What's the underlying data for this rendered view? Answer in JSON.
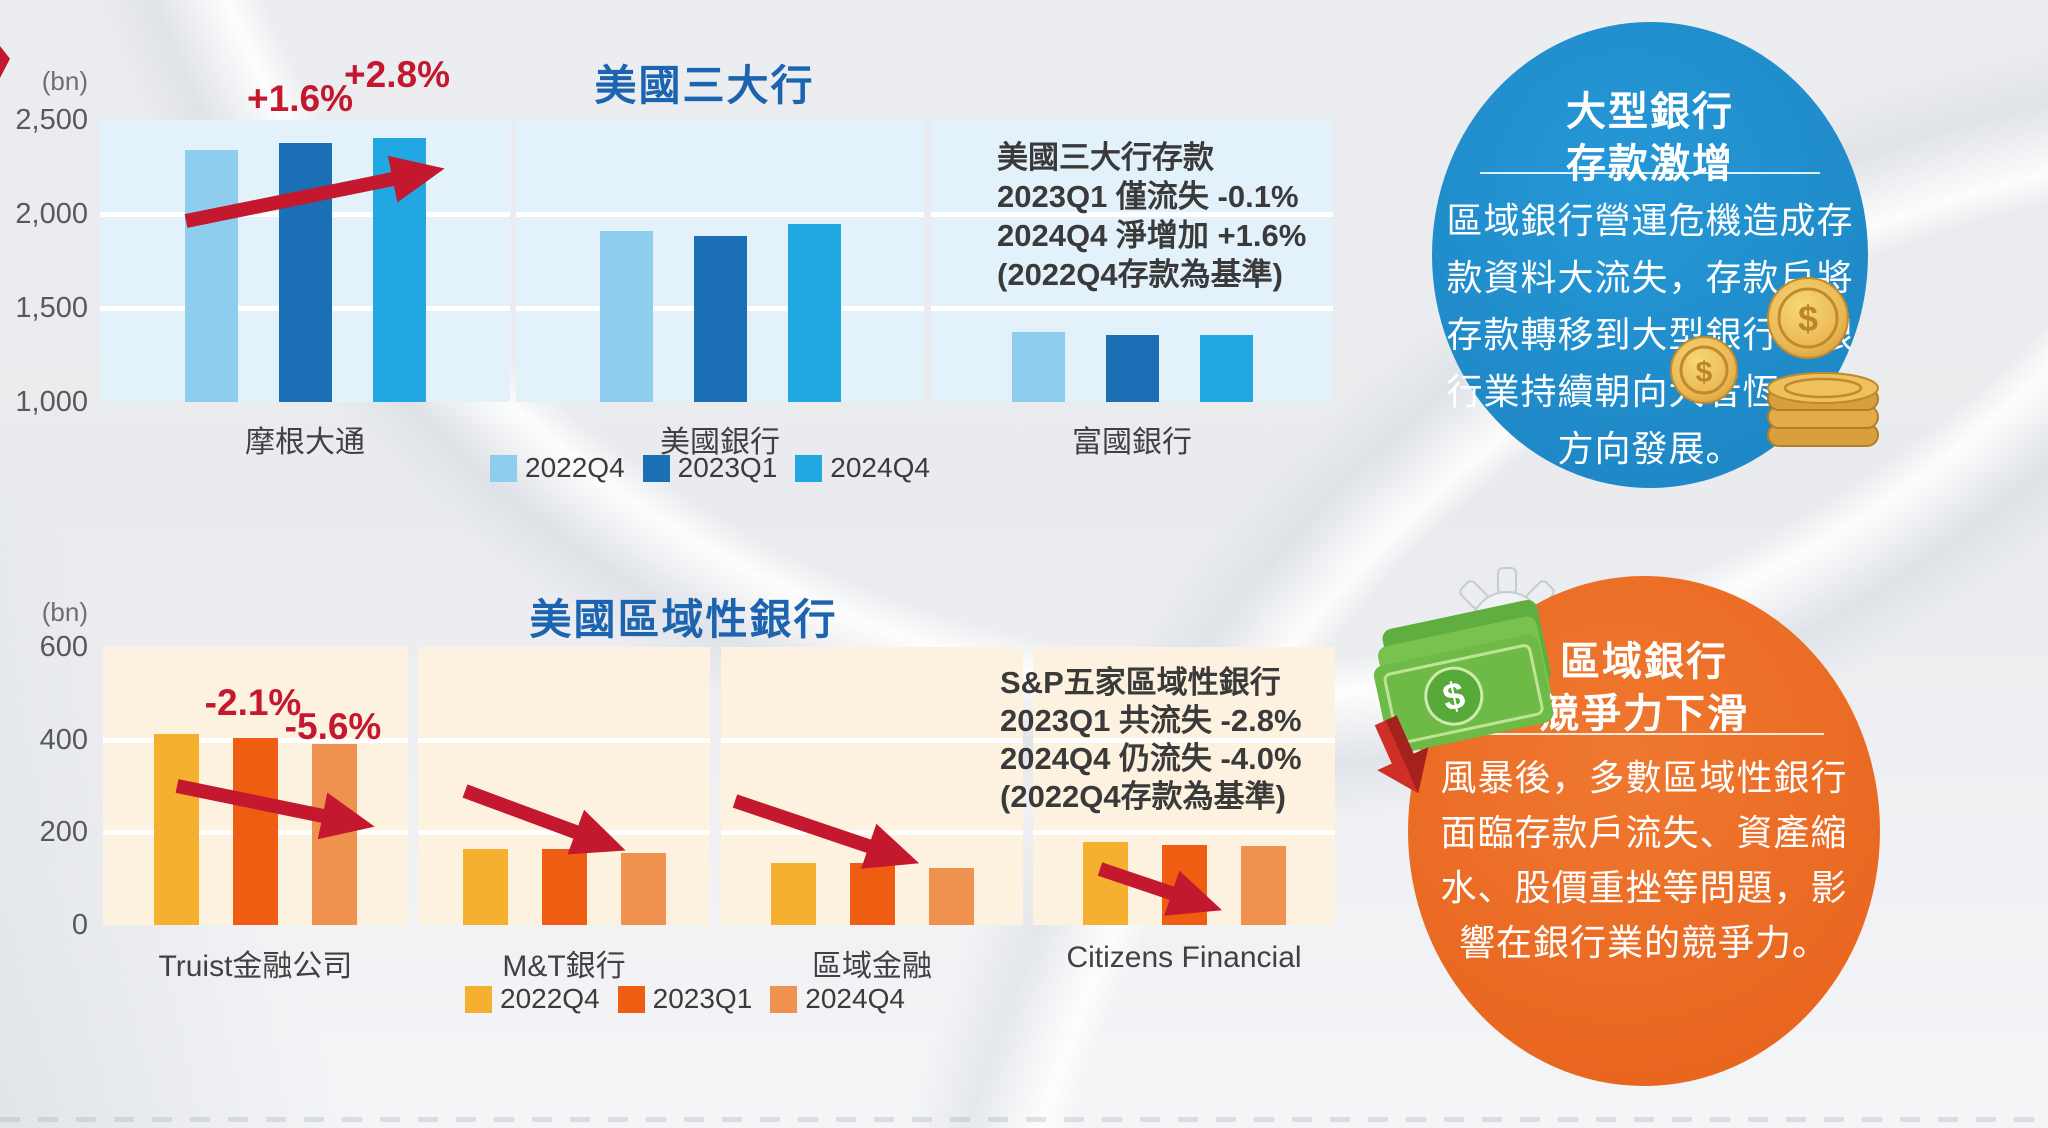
{
  "chart_data": [
    {
      "type": "bar",
      "title": "美國三大行",
      "unit": "(bn)",
      "ylim": [
        1000,
        2500
      ],
      "y_tick_values": [
        2500,
        2000,
        1500,
        1000
      ],
      "y_ticks": [
        "2,500",
        "2,000",
        "1,500",
        "1,000"
      ],
      "categories": [
        "摩根大通",
        "美國銀行",
        "富國銀行"
      ],
      "series": [
        {
          "name": "2022Q4",
          "color": "#8FCDEE",
          "values": [
            2340,
            1910,
            1370
          ]
        },
        {
          "name": "2023Q1",
          "color": "#1A6FB5",
          "values": [
            2377,
            1885,
            1355
          ]
        },
        {
          "name": "2024Q4",
          "color": "#21A7E2",
          "values": [
            2406,
            1945,
            1355
          ]
        }
      ],
      "annotations": [
        {
          "text": "+1.6%"
        },
        {
          "text": "+2.8%"
        }
      ],
      "note_lines": [
        "美國三大行存款",
        "2023Q1 僅流失 -0.1%",
        "2024Q4 淨增加 +1.6%",
        "(2022Q4存款為基準)"
      ],
      "plot_bg": "#E3F1FB",
      "grid": true,
      "legend_position": "bottom"
    },
    {
      "type": "bar",
      "title": "美國區域性銀行",
      "unit": "(bn)",
      "ylim": [
        0,
        600
      ],
      "y_tick_values": [
        600,
        400,
        200,
        0
      ],
      "y_ticks": [
        "600",
        "400",
        "200",
        "0"
      ],
      "categories": [
        "Truist金融公司",
        "M&T銀行",
        "區域金融",
        "Citizens Financial"
      ],
      "series": [
        {
          "name": "2022Q4",
          "color": "#F5B02F",
          "values": [
            413,
            163,
            133,
            180
          ]
        },
        {
          "name": "2023Q1",
          "color": "#EE5D11",
          "values": [
            404,
            163,
            133,
            172
          ]
        },
        {
          "name": "2024Q4",
          "color": "#F0924F",
          "values": [
            390,
            156,
            122,
            171
          ]
        }
      ],
      "annotations": [
        {
          "text": "-2.1%"
        },
        {
          "text": "-5.6%"
        }
      ],
      "note_lines": [
        "S&P五家區域性銀行",
        "2023Q1 共流失 -2.8%",
        "2024Q4 仍流失 -4.0%",
        "(2022Q4存款為基準)"
      ],
      "plot_bg": "#FCF2DF",
      "grid": true,
      "legend_position": "bottom"
    }
  ],
  "callouts": {
    "big_banks": {
      "accent": "#2191CE",
      "title": "大型銀行\n存款激增",
      "body": "區域銀行營運危機造成存\n款資料大流失，存款戶將\n存款轉移到大型銀行，銀\n行業持續朝向大者恆大的\n方向發展。"
    },
    "regional_banks": {
      "accent": "#EC6E28",
      "title": "區域銀行\n競爭力下滑",
      "body": "風暴後，多數區域性銀行\n面臨存款戶流失、資產縮\n水、股價重挫等問題，影\n響在銀行業的競爭力。"
    }
  },
  "icons": {
    "coins": "gold-coins-stack",
    "money": "cash-bills-with-down-arrow",
    "gear": "gear"
  },
  "colors": {
    "red": "#C3182E",
    "title_blue": "#1C64B0",
    "text_dark": "#3A3A3A",
    "tick_gray": "#58595B",
    "blue_circle": "#2191CE",
    "orange_circle": "#EC6E28"
  }
}
